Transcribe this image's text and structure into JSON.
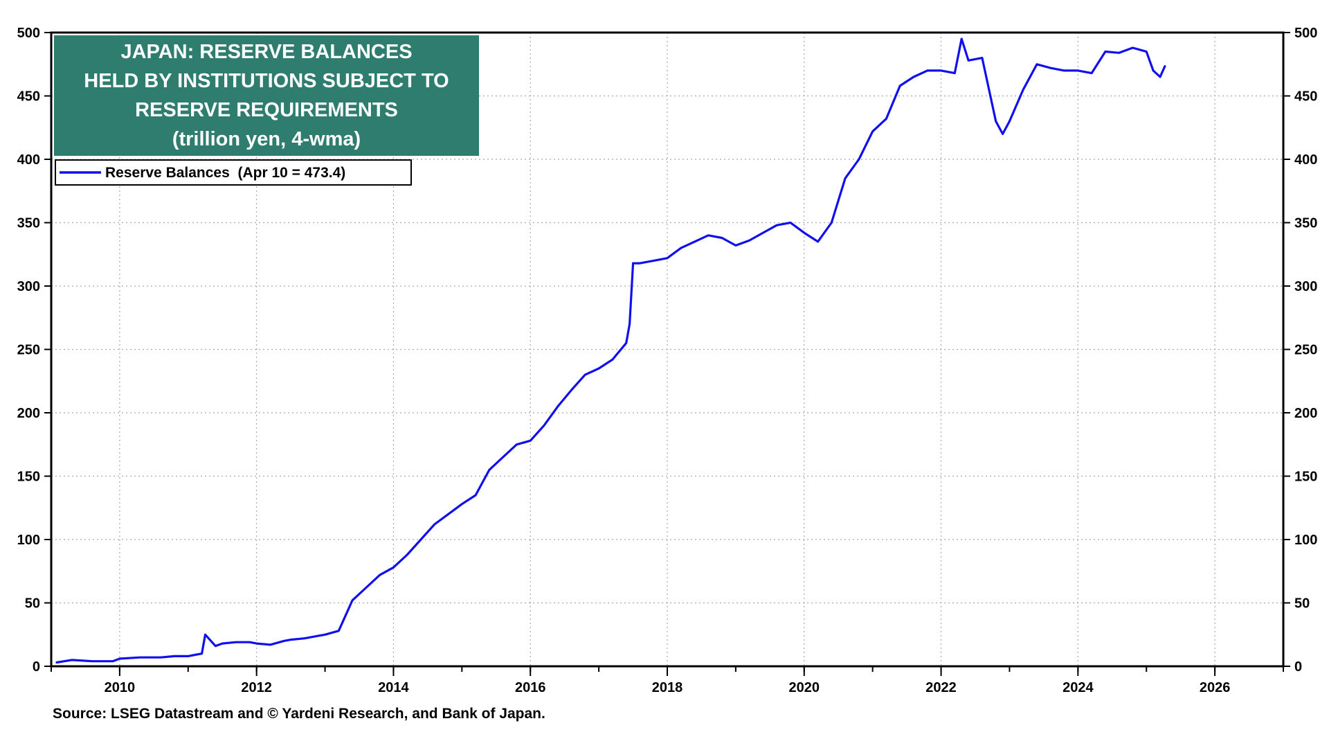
{
  "chart_data": {
    "type": "line",
    "title_lines": [
      "JAPAN: RESERVE BALANCES",
      "HELD BY INSTITUTIONS SUBJECT TO",
      "RESERVE REQUIREMENTS",
      "(trillion yen, 4-wma)"
    ],
    "xlabel": "",
    "ylabel": "",
    "x_ticks": [
      "2010",
      "2012",
      "2014",
      "2016",
      "2018",
      "2020",
      "2022",
      "2024",
      "2026"
    ],
    "y_ticks": [
      "0",
      "50",
      "100",
      "150",
      "200",
      "250",
      "300",
      "350",
      "400",
      "450",
      "500"
    ],
    "xlim": [
      2009.0,
      2027.0
    ],
    "ylim": [
      0,
      500
    ],
    "grid": true,
    "legend_position": "top-left",
    "legend_label": "Reserve Balances  (Apr 10 = 473.4)",
    "series": [
      {
        "name": "Reserve Balances",
        "color": "#1010ee",
        "x": [
          2009.08,
          2009.3,
          2009.6,
          2009.9,
          2010.0,
          2010.3,
          2010.6,
          2010.8,
          2011.0,
          2011.1,
          2011.2,
          2011.25,
          2011.4,
          2011.5,
          2011.7,
          2011.9,
          2012.0,
          2012.2,
          2012.4,
          2012.5,
          2012.7,
          2012.9,
          2013.0,
          2013.2,
          2013.3,
          2013.4,
          2013.6,
          2013.8,
          2014.0,
          2014.2,
          2014.4,
          2014.6,
          2014.8,
          2015.0,
          2015.2,
          2015.4,
          2015.6,
          2015.8,
          2016.0,
          2016.2,
          2016.4,
          2016.6,
          2016.8,
          2017.0,
          2017.2,
          2017.4,
          2017.45,
          2017.5,
          2017.6,
          2017.8,
          2018.0,
          2018.2,
          2018.4,
          2018.6,
          2018.8,
          2019.0,
          2019.2,
          2019.4,
          2019.6,
          2019.8,
          2020.0,
          2020.2,
          2020.4,
          2020.6,
          2020.8,
          2021.0,
          2021.2,
          2021.4,
          2021.6,
          2021.8,
          2022.0,
          2022.2,
          2022.3,
          2022.4,
          2022.6,
          2022.8,
          2022.9,
          2023.0,
          2023.2,
          2023.4,
          2023.6,
          2023.8,
          2024.0,
          2024.2,
          2024.4,
          2024.6,
          2024.8,
          2025.0,
          2025.1,
          2025.2,
          2025.27
        ],
        "values": [
          3,
          5,
          4,
          4,
          6,
          7,
          7,
          8,
          8,
          9,
          10,
          25,
          16,
          18,
          19,
          19,
          18,
          17,
          20,
          21,
          22,
          24,
          25,
          28,
          40,
          52,
          62,
          72,
          78,
          88,
          100,
          112,
          120,
          128,
          135,
          155,
          165,
          175,
          178,
          190,
          205,
          218,
          230,
          235,
          242,
          255,
          270,
          318,
          318,
          320,
          322,
          330,
          335,
          340,
          338,
          332,
          336,
          342,
          348,
          350,
          342,
          335,
          350,
          385,
          400,
          422,
          432,
          458,
          465,
          470,
          470,
          468,
          495,
          478,
          480,
          430,
          420,
          430,
          455,
          475,
          472,
          470,
          470,
          468,
          485,
          484,
          488,
          485,
          470,
          465,
          473.4
        ]
      }
    ]
  },
  "source": "Source: LSEG Datastream and © Yardeni Research, and Bank of Japan.",
  "colors": {
    "title_box": "#2e7d6f",
    "series_line": "#1010ee",
    "grid": "#a8a8a8",
    "axis": "#000000"
  }
}
